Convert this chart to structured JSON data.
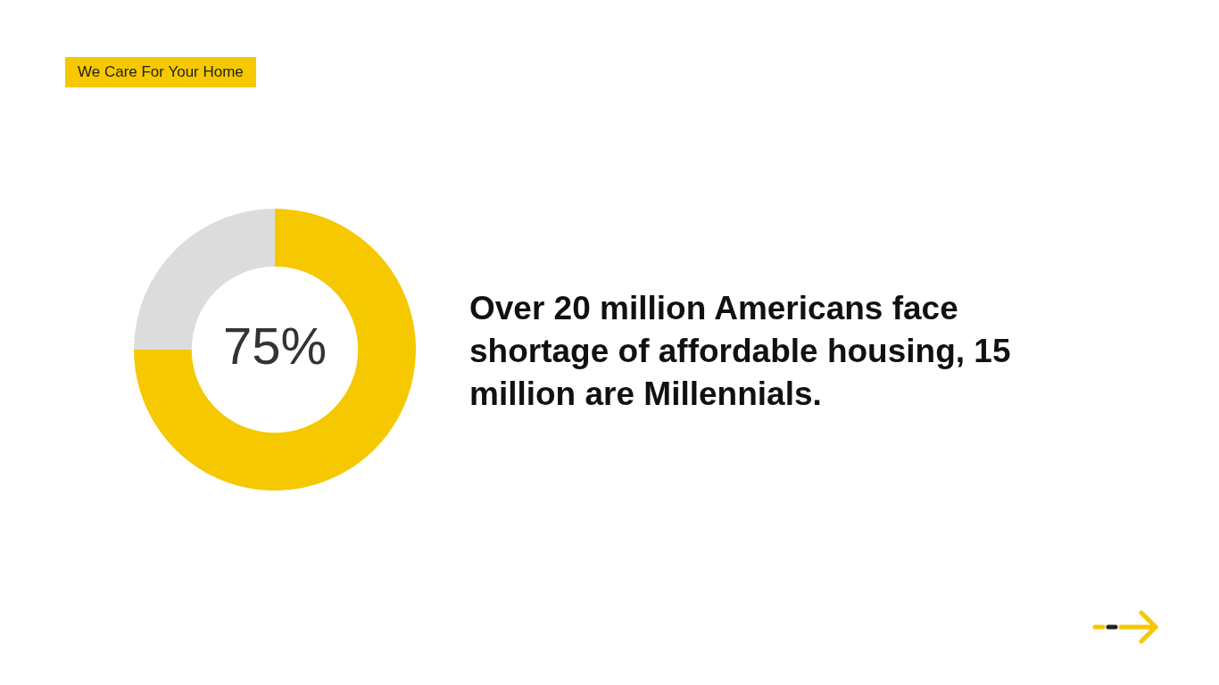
{
  "chart_data": {
    "type": "donut",
    "title": "Over 20 million Americans face shortage of affordable housing, 15 million are Millennials.",
    "annotations": [
      "We Care For Your Home"
    ],
    "categories": [
      null,
      null
    ],
    "values": [
      75,
      25
    ],
    "colors": [
      "#f5c800",
      "#dcdcdc"
    ],
    "value_labels": [
      "75%",
      null
    ]
  }
}
